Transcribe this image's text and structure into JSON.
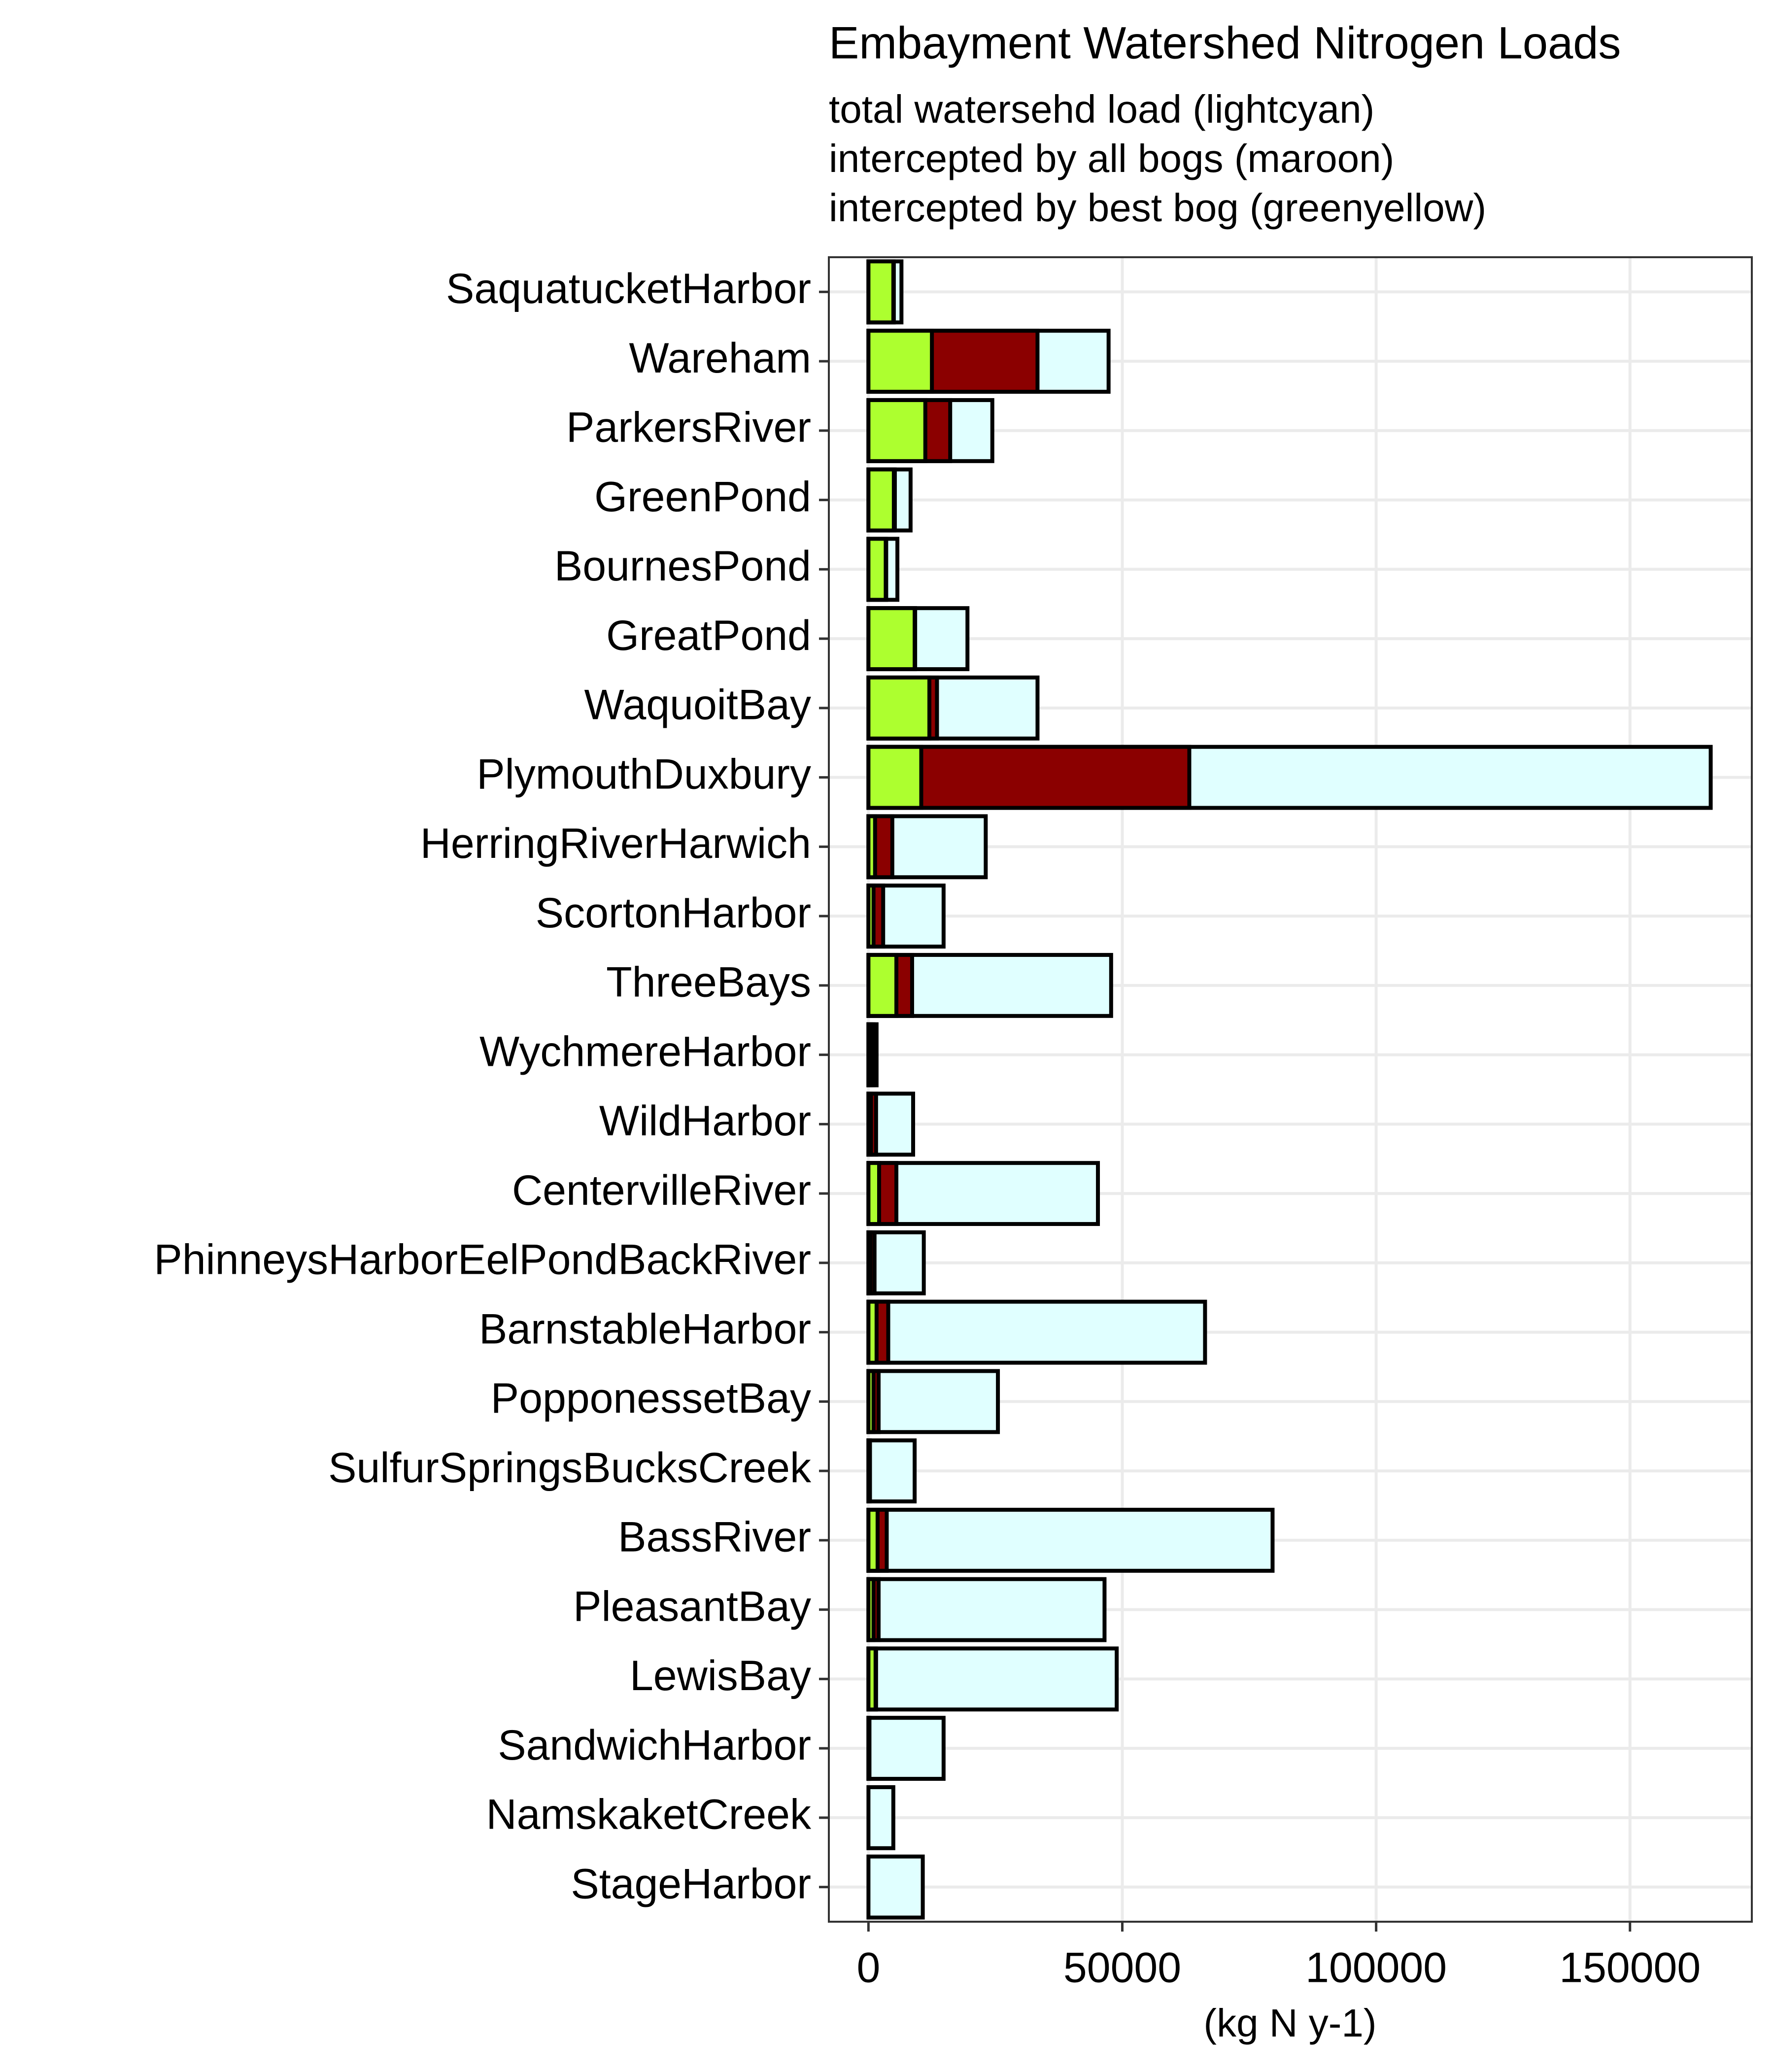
{
  "chart_data": {
    "type": "overlaid-bar",
    "title": "Embayment Watershed Nitrogen Loads",
    "subtitle": [
      "total watersehd load (lightcyan)",
      "intercepted by all bogs (maroon)",
      "intercepted by best bog (greenyellow)"
    ],
    "x_label": "(kg N y-1)",
    "categories": [
      "SaquatucketHarbor",
      "Wareham",
      "ParkersRiver",
      "GreenPond",
      "BournesPond",
      "GreatPond",
      "WaquoitBay",
      "PlymouthDuxbury",
      "HerringRiverHarwich",
      "ScortonHarbor",
      "ThreeBays",
      "WychmereHarbor",
      "WildHarbor",
      "CentervilleRiver",
      "PhinneysHarborEelPondBackRiver",
      "BarnstableHarbor",
      "PopponessetBay",
      "SulfurSpringsBucksCreek",
      "BassRiver",
      "PleasantBay",
      "LewisBay",
      "SandwichHarbor",
      "NamskaketCreek",
      "StageHarbor"
    ],
    "series": [
      {
        "color": "#e0ffff",
        "values": [
          6500,
          47300,
          24400,
          8300,
          5700,
          19500,
          33300,
          165900,
          23100,
          14800,
          47800,
          1600,
          8800,
          45200,
          10900,
          66300,
          25500,
          9100,
          79600,
          46500,
          48900,
          14800,
          4900,
          10700
        ]
      },
      {
        "color": "#8b0000",
        "values": [
          5000,
          33300,
          16100,
          5200,
          3500,
          9200,
          13500,
          63200,
          4700,
          2900,
          8600,
          1000,
          1500,
          5500,
          1200,
          3900,
          2000,
          300,
          3600,
          2000,
          1500,
          200,
          0,
          0
        ]
      },
      {
        "color": "#adff2f",
        "values": [
          4900,
          12500,
          11200,
          5000,
          3400,
          9100,
          12000,
          10400,
          1300,
          1000,
          5500,
          500,
          500,
          2100,
          400,
          1600,
          1000,
          200,
          1800,
          1000,
          1400,
          100,
          0,
          0
        ]
      }
    ],
    "xlim": [
      -7800,
      174000
    ],
    "xticks": [
      0,
      50000,
      100000,
      150000
    ],
    "grid": true
  }
}
